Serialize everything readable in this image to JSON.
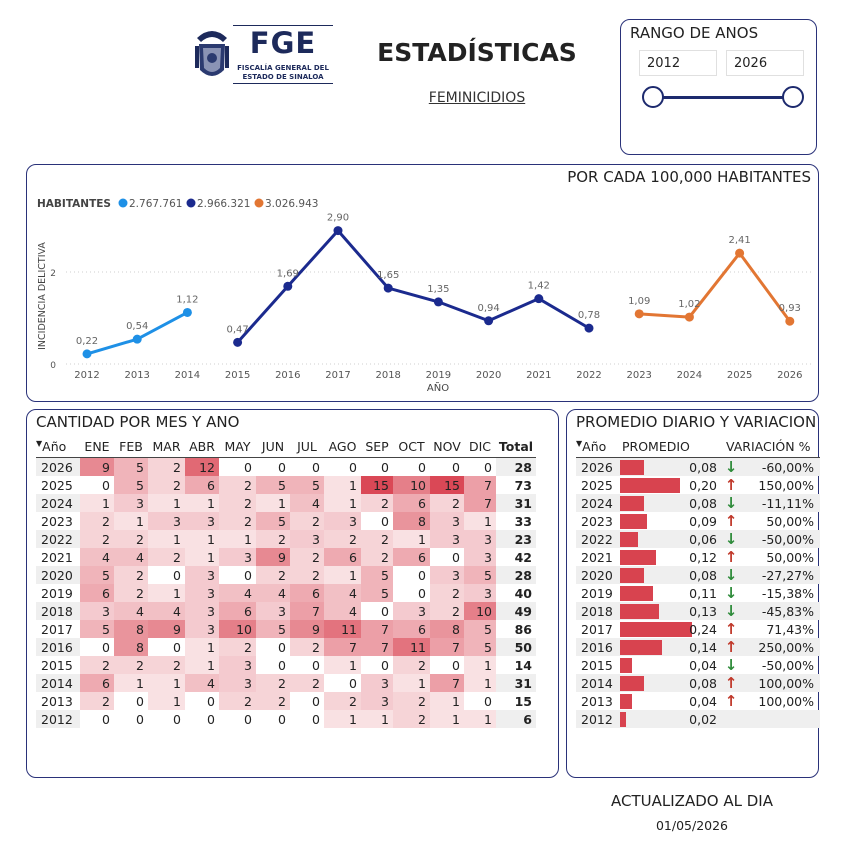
{
  "header": {
    "logo": {
      "name": "FGE",
      "line1": "FISCALÍA GENERAL DEL",
      "line2": "ESTADO DE SINALOA"
    },
    "title": "ESTADÍSTICAS",
    "subtitle": "FEMINICIDIOS"
  },
  "range": {
    "title": "RANGO DE ANOS",
    "from": "2012",
    "to": "2026",
    "from_fraction": 0,
    "to_fraction": 1
  },
  "chart": {
    "title": "POR CADA 100,000 HABITANTES",
    "legend_title": "HABITANTES",
    "ylabel": "INCIDENCIA DELICTIVA",
    "xlabel": "AÑO",
    "y_ticks": [
      "0",
      "2"
    ],
    "series_colors": [
      "#1e90e6",
      "#1b2a8e",
      "#e27633"
    ]
  },
  "chart_data": {
    "type": "line",
    "x": [
      "2012",
      "2013",
      "2014",
      "2015",
      "2016",
      "2017",
      "2018",
      "2019",
      "2020",
      "2021",
      "2022",
      "2023",
      "2024",
      "2025",
      "2026"
    ],
    "ylim": [
      0,
      2.9
    ],
    "grid": true,
    "legend_placement": "top-left",
    "series": [
      {
        "name": "2.767.761",
        "color": "#1e90e6",
        "points": [
          {
            "x": "2012",
            "y": 0.22,
            "label": "0,22"
          },
          {
            "x": "2013",
            "y": 0.54,
            "label": "0,54"
          },
          {
            "x": "2014",
            "y": 1.12,
            "label": "1,12"
          }
        ]
      },
      {
        "name": "2.966.321",
        "color": "#1b2a8e",
        "points": [
          {
            "x": "2015",
            "y": 0.47,
            "label": "0,47"
          },
          {
            "x": "2016",
            "y": 1.69,
            "label": "1,69"
          },
          {
            "x": "2017",
            "y": 2.9,
            "label": "2,90"
          },
          {
            "x": "2018",
            "y": 1.65,
            "label": "1,65"
          },
          {
            "x": "2019",
            "y": 1.35,
            "label": "1,35"
          },
          {
            "x": "2020",
            "y": 0.94,
            "label": "0,94"
          },
          {
            "x": "2021",
            "y": 1.42,
            "label": "1,42"
          },
          {
            "x": "2022",
            "y": 0.78,
            "label": "0,78"
          }
        ]
      },
      {
        "name": "3.026.943",
        "color": "#e27633",
        "points": [
          {
            "x": "2023",
            "y": 1.09,
            "label": "1,09"
          },
          {
            "x": "2024",
            "y": 1.02,
            "label": "1,02"
          },
          {
            "x": "2025",
            "y": 2.41,
            "label": "2,41"
          },
          {
            "x": "2026",
            "y": 0.93,
            "label": "0,93"
          }
        ]
      }
    ]
  },
  "monthly": {
    "title": "CANTIDAD POR MES Y ANO",
    "columns": [
      "Año",
      "ENE",
      "FEB",
      "MAR",
      "ABR",
      "MAY",
      "JUN",
      "JUL",
      "AGO",
      "SEP",
      "OCT",
      "NOV",
      "DIC",
      "Total"
    ],
    "max_value": 15,
    "rows": [
      {
        "year": "2026",
        "values": [
          9,
          5,
          2,
          12,
          0,
          0,
          0,
          0,
          0,
          0,
          0,
          0
        ],
        "total": "28"
      },
      {
        "year": "2025",
        "values": [
          0,
          5,
          2,
          6,
          2,
          5,
          5,
          1,
          15,
          10,
          15,
          7
        ],
        "total": "73"
      },
      {
        "year": "2024",
        "values": [
          1,
          3,
          1,
          1,
          2,
          1,
          4,
          1,
          2,
          6,
          2,
          7
        ],
        "total": "31"
      },
      {
        "year": "2023",
        "values": [
          2,
          1,
          3,
          3,
          2,
          5,
          2,
          3,
          0,
          8,
          3,
          1
        ],
        "total": "33"
      },
      {
        "year": "2022",
        "values": [
          2,
          2,
          1,
          1,
          1,
          2,
          3,
          2,
          2,
          1,
          3,
          3
        ],
        "total": "23"
      },
      {
        "year": "2021",
        "values": [
          4,
          4,
          2,
          1,
          3,
          9,
          2,
          6,
          2,
          6,
          0,
          3
        ],
        "total": "42"
      },
      {
        "year": "2020",
        "values": [
          5,
          2,
          0,
          3,
          0,
          2,
          2,
          1,
          5,
          0,
          3,
          5
        ],
        "total": "28"
      },
      {
        "year": "2019",
        "values": [
          6,
          2,
          1,
          3,
          4,
          4,
          6,
          4,
          5,
          0,
          2,
          3
        ],
        "total": "40"
      },
      {
        "year": "2018",
        "values": [
          3,
          4,
          4,
          3,
          6,
          3,
          7,
          4,
          0,
          3,
          2,
          10
        ],
        "total": "49"
      },
      {
        "year": "2017",
        "values": [
          5,
          8,
          9,
          3,
          10,
          5,
          9,
          11,
          7,
          6,
          8,
          5
        ],
        "total": "86"
      },
      {
        "year": "2016",
        "values": [
          0,
          8,
          0,
          1,
          2,
          0,
          2,
          7,
          7,
          11,
          7,
          5
        ],
        "total": "50"
      },
      {
        "year": "2015",
        "values": [
          2,
          2,
          2,
          1,
          3,
          0,
          0,
          1,
          0,
          2,
          0,
          1
        ],
        "total": "14"
      },
      {
        "year": "2014",
        "values": [
          6,
          1,
          1,
          4,
          3,
          2,
          2,
          0,
          3,
          1,
          7,
          1
        ],
        "total": "31"
      },
      {
        "year": "2013",
        "values": [
          2,
          0,
          1,
          0,
          2,
          2,
          0,
          2,
          3,
          2,
          1,
          0
        ],
        "total": "15"
      },
      {
        "year": "2012",
        "values": [
          0,
          0,
          0,
          0,
          0,
          0,
          0,
          1,
          1,
          2,
          1,
          1
        ],
        "total": "6"
      }
    ]
  },
  "daily": {
    "title": "PROMEDIO DIARIO Y VARIACION",
    "columns": [
      "Año",
      "PROMEDIO",
      "VARIACIÓN %"
    ],
    "max_value": 0.24,
    "up_color": "#c0392b",
    "down_color": "#2e8b3a",
    "rows": [
      {
        "year": "2026",
        "value": 0.08,
        "label": "0,08",
        "trend": "down",
        "pct": "-60,00%"
      },
      {
        "year": "2025",
        "value": 0.2,
        "label": "0,20",
        "trend": "up",
        "pct": "150,00%"
      },
      {
        "year": "2024",
        "value": 0.08,
        "label": "0,08",
        "trend": "down",
        "pct": "-11,11%"
      },
      {
        "year": "2023",
        "value": 0.09,
        "label": "0,09",
        "trend": "up",
        "pct": "50,00%"
      },
      {
        "year": "2022",
        "value": 0.06,
        "label": "0,06",
        "trend": "down",
        "pct": "-50,00%"
      },
      {
        "year": "2021",
        "value": 0.12,
        "label": "0,12",
        "trend": "up",
        "pct": "50,00%"
      },
      {
        "year": "2020",
        "value": 0.08,
        "label": "0,08",
        "trend": "down",
        "pct": "-27,27%"
      },
      {
        "year": "2019",
        "value": 0.11,
        "label": "0,11",
        "trend": "down",
        "pct": "-15,38%"
      },
      {
        "year": "2018",
        "value": 0.13,
        "label": "0,13",
        "trend": "down",
        "pct": "-45,83%"
      },
      {
        "year": "2017",
        "value": 0.24,
        "label": "0,24",
        "trend": "up",
        "pct": "71,43%"
      },
      {
        "year": "2016",
        "value": 0.14,
        "label": "0,14",
        "trend": "up",
        "pct": "250,00%"
      },
      {
        "year": "2015",
        "value": 0.04,
        "label": "0,04",
        "trend": "down",
        "pct": "-50,00%"
      },
      {
        "year": "2014",
        "value": 0.08,
        "label": "0,08",
        "trend": "up",
        "pct": "100,00%"
      },
      {
        "year": "2013",
        "value": 0.04,
        "label": "0,04",
        "trend": "up",
        "pct": "100,00%"
      },
      {
        "year": "2012",
        "value": 0.02,
        "label": "0,02",
        "trend": "",
        "pct": ""
      }
    ]
  },
  "footer": {
    "updated_label": "ACTUALIZADO AL DIA",
    "date": "01/05/2026"
  }
}
